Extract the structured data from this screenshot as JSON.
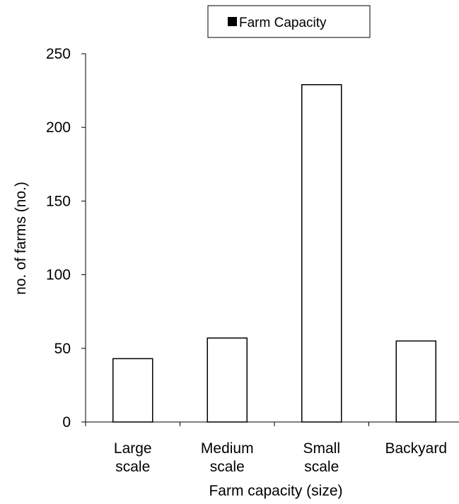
{
  "chart_data": {
    "type": "bar",
    "title": "",
    "legend": {
      "label": "Farm Capacity",
      "position": "top-right"
    },
    "categories": [
      [
        "Large",
        "scale"
      ],
      [
        "Medium",
        "scale"
      ],
      [
        "Small",
        "scale"
      ],
      [
        "Backyard"
      ]
    ],
    "series": [
      {
        "name": "Farm Capacity",
        "values": [
          43,
          57,
          229,
          55
        ]
      }
    ],
    "xlabel": "Farm capacity (size)",
    "ylabel": "no. of farms (no.)",
    "ylim": [
      0,
      250
    ],
    "yticks": [
      0,
      50,
      100,
      150,
      200,
      250
    ],
    "grid": false,
    "colors": {
      "bar_fill": "#ffffff",
      "bar_stroke": "#000000",
      "axis": "#000000",
      "legend_swatch": "#000000"
    }
  }
}
